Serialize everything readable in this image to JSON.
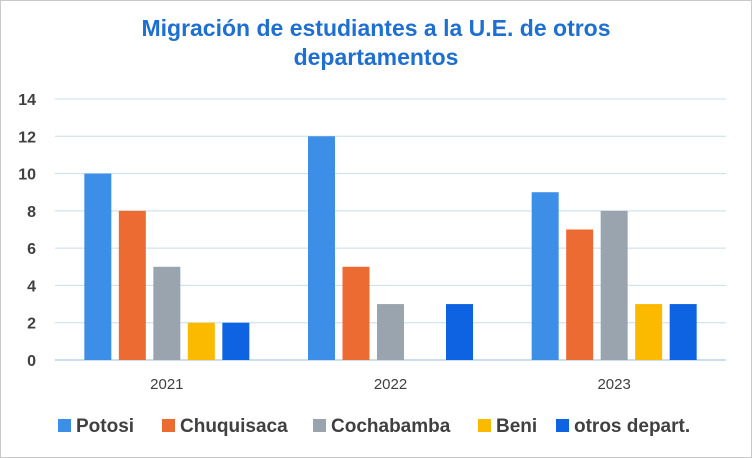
{
  "chart_data": {
    "type": "bar",
    "title_line1": "Migración de estudiantes a la U.E. de otros",
    "title_line2": "departamentos",
    "categories": [
      "2021",
      "2022",
      "2023"
    ],
    "series": [
      {
        "name": "Potosi",
        "values": [
          10,
          12,
          9
        ],
        "color": "#3c8ee6"
      },
      {
        "name": "Chuquisaca",
        "values": [
          8,
          5,
          7
        ],
        "color": "#ec6b32"
      },
      {
        "name": "Cochabamba",
        "values": [
          5,
          3,
          8
        ],
        "color": "#9aa4ae"
      },
      {
        "name": "Beni",
        "values": [
          2,
          0,
          3
        ],
        "color": "#fbb900"
      },
      {
        "name": "otros depart.",
        "values": [
          2,
          3,
          3
        ],
        "color": "#0e63e2"
      }
    ],
    "yticks": [
      0,
      2,
      4,
      6,
      8,
      10,
      12,
      14
    ],
    "ylim": [
      0,
      14
    ],
    "grid": true,
    "legend_position": "bottom"
  }
}
